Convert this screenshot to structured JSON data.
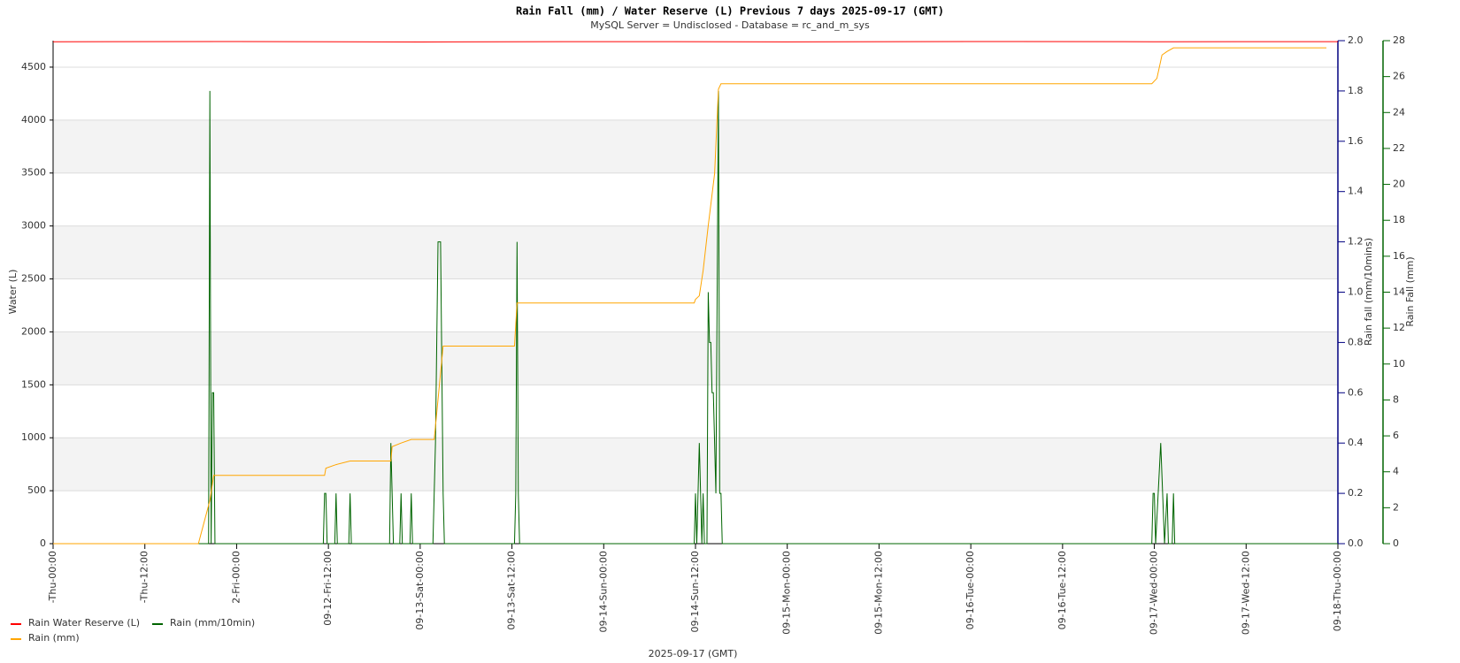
{
  "chart_data": {
    "type": "line",
    "title": "Rain Fall (mm) / Water Reserve (L) Previous 7     days 2025-09-17 (GMT)",
    "subtitle": "MySQL Server = Undisclosed - Database = rc_and_m_sys",
    "x_label": "2025-09-17 (GMT)",
    "y_label": "Water (L)",
    "y2_label": "Rain fall (mm/10mins)",
    "y3_label": "Rain Fall (mm)",
    "xlim": [
      "2025-09-11 00:00",
      "2025-09-18 00:00"
    ],
    "xticks": [
      {
        "value": "2025-09-11 00:00",
        "label": "-Thu-00:00"
      },
      {
        "value": "2025-09-11 12:00",
        "label": "-Thu-12:00"
      },
      {
        "value": "2025-09-12 00:00",
        "label": "2-Fri-00:00"
      },
      {
        "value": "2025-09-12 12:00",
        "label": "09-12-Fri-12:00"
      },
      {
        "value": "2025-09-13 00:00",
        "label": "09-13-Sat-00:00"
      },
      {
        "value": "2025-09-13 12:00",
        "label": "09-13-Sat-12:00"
      },
      {
        "value": "2025-09-14 00:00",
        "label": "09-14-Sun-00:00"
      },
      {
        "value": "2025-09-14 12:00",
        "label": "09-14-Sun-12:00"
      },
      {
        "value": "2025-09-15 00:00",
        "label": "09-15-Mon-00:00"
      },
      {
        "value": "2025-09-15 12:00",
        "label": "09-15-Mon-12:00"
      },
      {
        "value": "2025-09-16 00:00",
        "label": "09-16-Tue-00:00"
      },
      {
        "value": "2025-09-16 12:00",
        "label": "09-16-Tue-12:00"
      },
      {
        "value": "2025-09-17 00:00",
        "label": "09-17-Wed-00:00"
      },
      {
        "value": "2025-09-17 12:00",
        "label": "09-17-Wed-12:00"
      },
      {
        "value": "2025-09-18 00:00",
        "label": "09-18-Thu-00:00"
      }
    ],
    "ylim": [
      0,
      4750
    ],
    "yticks": [
      0,
      500,
      1000,
      1500,
      2000,
      2500,
      3000,
      3500,
      4000,
      4500
    ],
    "y2lim": [
      0,
      2
    ],
    "y2ticks": [
      {
        "value": 0,
        "label": "0.0"
      },
      0.2,
      0.4,
      0.6,
      0.8,
      {
        "value": 1,
        "label": "1.0"
      },
      1.2,
      1.4,
      1.6,
      1.8,
      {
        "value": 2,
        "label": "2.0"
      }
    ],
    "y3lim": [
      0,
      28
    ],
    "y3ticks": [
      0,
      2,
      4,
      6,
      8,
      10,
      12,
      14,
      16,
      18,
      20,
      22,
      24,
      26,
      28
    ],
    "grid": true,
    "legend": "bottom-left",
    "series": [
      {
        "name": "Rain Water Reserve (L)",
        "color": "#ff0000",
        "axis": "y",
        "x": [
          "2025-09-11 00:00",
          "2025-09-12 00:00",
          "2025-09-13 00:00",
          "2025-09-14 00:00",
          "2025-09-15 00:00",
          "2025-09-16 00:00",
          "2025-09-17 00:00",
          "2025-09-18 00:00"
        ],
        "values": [
          4740,
          4742,
          4738,
          4741,
          4739,
          4742,
          4740,
          4741
        ]
      },
      {
        "name": "Rain (mm/10min)",
        "color": "#006400",
        "axis": "y2",
        "x": [
          "2025-09-11 00:00",
          "2025-09-11 20:20",
          "2025-09-11 20:30",
          "2025-09-11 20:40",
          "2025-09-11 20:50",
          "2025-09-11 21:00",
          "2025-09-11 21:10",
          "2025-09-12 11:20",
          "2025-09-12 11:30",
          "2025-09-12 11:40",
          "2025-09-12 11:50",
          "2025-09-12 12:50",
          "2025-09-12 13:00",
          "2025-09-12 13:10",
          "2025-09-12 14:40",
          "2025-09-12 14:50",
          "2025-09-12 15:00",
          "2025-09-12 20:00",
          "2025-09-12 20:10",
          "2025-09-12 20:20",
          "2025-09-12 20:30",
          "2025-09-12 21:20",
          "2025-09-12 21:30",
          "2025-09-12 21:40",
          "2025-09-12 22:40",
          "2025-09-12 22:50",
          "2025-09-12 23:00",
          "2025-09-13 01:40",
          "2025-09-13 02:00",
          "2025-09-13 02:20",
          "2025-09-13 02:40",
          "2025-09-13 03:00",
          "2025-09-13 03:10",
          "2025-09-13 12:20",
          "2025-09-13 12:30",
          "2025-09-13 12:40",
          "2025-09-13 12:50",
          "2025-09-13 13:00",
          "2025-09-14 11:50",
          "2025-09-14 12:00",
          "2025-09-14 12:10",
          "2025-09-14 12:30",
          "2025-09-14 12:40",
          "2025-09-14 12:50",
          "2025-09-14 13:00",
          "2025-09-14 13:10",
          "2025-09-14 13:30",
          "2025-09-14 13:40",
          "2025-09-14 13:50",
          "2025-09-14 14:00",
          "2025-09-14 14:10",
          "2025-09-14 14:20",
          "2025-09-14 14:40",
          "2025-09-14 15:00",
          "2025-09-14 15:10",
          "2025-09-14 15:20",
          "2025-09-14 15:30",
          "2025-09-16 23:40",
          "2025-09-16 23:50",
          "2025-09-17 00:00",
          "2025-09-17 00:10",
          "2025-09-17 00:50",
          "2025-09-17 01:20",
          "2025-09-17 01:40",
          "2025-09-17 01:50",
          "2025-09-17 02:00",
          "2025-09-17 02:20",
          "2025-09-17 02:30",
          "2025-09-17 02:40",
          "2025-09-18 00:00"
        ],
        "values": [
          0,
          0,
          1.8,
          0,
          0.6,
          0.6,
          0,
          0,
          0.2,
          0.2,
          0,
          0,
          0.2,
          0,
          0,
          0.2,
          0,
          0,
          0.4,
          0.2,
          0,
          0,
          0.2,
          0,
          0,
          0.2,
          0,
          0,
          0.4,
          1.2,
          1.2,
          0.2,
          0,
          0,
          0.2,
          1.2,
          0.2,
          0,
          0,
          0.2,
          0,
          0.4,
          0.2,
          0,
          0.2,
          0,
          0,
          1.0,
          0.8,
          0.8,
          0.6,
          0.6,
          0.2,
          1.8,
          0.2,
          0.2,
          0,
          0,
          0.2,
          0.2,
          0,
          0.4,
          0,
          0.2,
          0,
          0,
          0,
          0.2,
          0,
          0
        ]
      },
      {
        "name": "Rain (mm)",
        "color": "#ffa500",
        "axis": "y3",
        "x": [
          "2025-09-11 00:00",
          "2025-09-11 19:00",
          "2025-09-11 20:30",
          "2025-09-11 21:00",
          "2025-09-12 11:30",
          "2025-09-12 11:40",
          "2025-09-12 13:00",
          "2025-09-12 14:50",
          "2025-09-12 20:10",
          "2025-09-12 20:20",
          "2025-09-12 21:30",
          "2025-09-12 22:50",
          "2025-09-13 01:50",
          "2025-09-13 03:00",
          "2025-09-13 12:20",
          "2025-09-13 12:40",
          "2025-09-14 11:50",
          "2025-09-14 12:00",
          "2025-09-14 12:30",
          "2025-09-14 13:00",
          "2025-09-14 13:40",
          "2025-09-14 14:30",
          "2025-09-14 15:00",
          "2025-09-14 15:20",
          "2025-09-16 23:40",
          "2025-09-17 00:20",
          "2025-09-17 01:00",
          "2025-09-17 01:40",
          "2025-09-17 02:30",
          "2025-09-17 22:30"
        ],
        "values": [
          0,
          0,
          2.4,
          3.8,
          3.8,
          4.2,
          4.4,
          4.6,
          4.6,
          5.4,
          5.6,
          5.8,
          5.8,
          11.0,
          11.0,
          13.4,
          13.4,
          13.6,
          13.8,
          15.2,
          17.7,
          20.6,
          25.3,
          25.6,
          25.6,
          25.9,
          27.2,
          27.4,
          27.6,
          27.6
        ]
      }
    ]
  }
}
